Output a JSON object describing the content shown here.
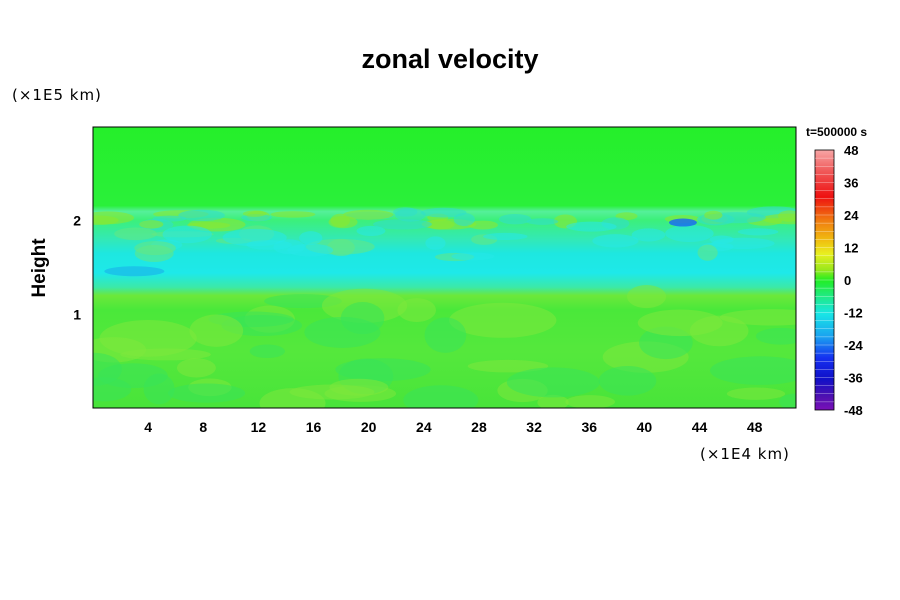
{
  "chart_data": {
    "type": "heatmap",
    "title": "zonal velocity",
    "xlabel": "",
    "ylabel": "Height",
    "x_unit": "(×1E4 km)",
    "y_unit": "(×1E5 km)",
    "time_label": "t=500000 s",
    "xlim": [
      0,
      51
    ],
    "ylim": [
      0,
      3
    ],
    "x_ticks": [
      4,
      8,
      12,
      16,
      20,
      24,
      28,
      32,
      36,
      40,
      44,
      48
    ],
    "y_ticks": [
      1,
      2
    ],
    "colorbar": {
      "range": [
        -48,
        48
      ],
      "ticks": [
        48,
        36,
        24,
        12,
        0,
        -12,
        -24,
        -36,
        -48
      ]
    },
    "bands": [
      {
        "y": [
          2.1,
          3.0
        ],
        "value": 2
      },
      {
        "y": [
          1.95,
          2.1
        ],
        "value": -4
      },
      {
        "y": [
          1.6,
          1.95
        ],
        "value": -9
      },
      {
        "y": [
          1.35,
          1.6
        ],
        "value": -17
      },
      {
        "y": [
          1.22,
          1.35
        ],
        "value": -6
      },
      {
        "y": [
          0,
          1.22
        ],
        "value": 4
      }
    ]
  },
  "colors": {
    "background": "#ffffff",
    "field_base": "#22ee22",
    "cyan_band": "#19e6e6",
    "axis": "#000000"
  }
}
